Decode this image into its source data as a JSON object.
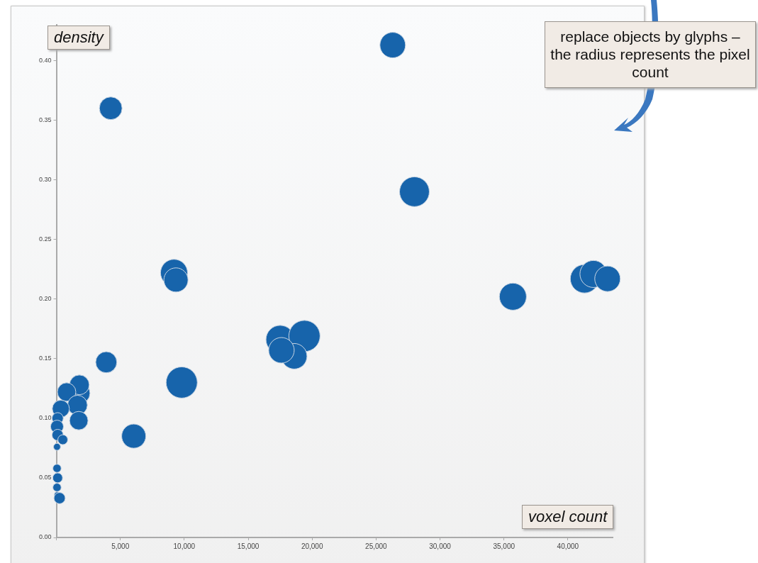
{
  "chart_data": {
    "type": "bubble",
    "xlabel": "voxel count",
    "ylabel": "density",
    "annotations": [
      "replace objects by glyphs – the radius represents the pixel count"
    ],
    "x": [
      26300,
      4250,
      28000,
      9200,
      9350,
      35700,
      41300,
      42000,
      43100,
      17500,
      19400,
      18600,
      17600,
      9800,
      3900,
      6050,
      1800,
      1800,
      800,
      1650,
      1750,
      350,
      100,
      50,
      100,
      500,
      50,
      50,
      100,
      50,
      50,
      250
    ],
    "values": [
      0.413,
      0.36,
      0.29,
      0.222,
      0.216,
      0.202,
      0.217,
      0.221,
      0.217,
      0.166,
      0.169,
      0.152,
      0.157,
      0.13,
      0.147,
      0.085,
      0.121,
      0.128,
      0.122,
      0.111,
      0.098,
      0.108,
      0.1,
      0.093,
      0.086,
      0.082,
      0.076,
      0.058,
      0.05,
      0.042,
      0.036,
      0.033
    ],
    "sizes": [
      0.67,
      0.53,
      0.91,
      0.75,
      0.6,
      0.75,
      0.83,
      0.75,
      0.67,
      0.83,
      1,
      0.67,
      0.67,
      1,
      0.46,
      0.6,
      0.46,
      0.4,
      0.35,
      0.4,
      0.35,
      0.3,
      0.13,
      0.17,
      0.13,
      0.1,
      0.05,
      0.07,
      0.1,
      0.07,
      0.03,
      0.13
    ],
    "color": "#1764ab",
    "xlim": [
      0,
      43500
    ],
    "xticks": [
      {
        "value": 0,
        "label": null
      },
      {
        "value": 5000,
        "label": "5,000"
      },
      {
        "value": 10000,
        "label": "10,000"
      },
      {
        "value": 15000,
        "label": "15,000"
      },
      {
        "value": 20000,
        "label": "20,000"
      },
      {
        "value": 25000,
        "label": "25,000"
      },
      {
        "value": 30000,
        "label": "30,000"
      },
      {
        "value": 35000,
        "label": "35,000"
      },
      {
        "value": 40000,
        "label": "40,000"
      }
    ],
    "ylim": [
      0,
      0.43
    ],
    "yticks": [
      {
        "value": 0,
        "label": "0.00"
      },
      {
        "value": 0.05,
        "label": "0.05"
      },
      {
        "value": 0.1,
        "label": "0.10"
      },
      {
        "value": 0.15,
        "label": "0.15"
      },
      {
        "value": 0.2,
        "label": "0.20"
      },
      {
        "value": 0.25,
        "label": "0.25"
      },
      {
        "value": 0.3,
        "label": "0.30"
      },
      {
        "value": 0.35,
        "label": "0.35"
      },
      {
        "value": 0.4,
        "label": "0.40"
      }
    ],
    "grid": false,
    "legend": false
  }
}
